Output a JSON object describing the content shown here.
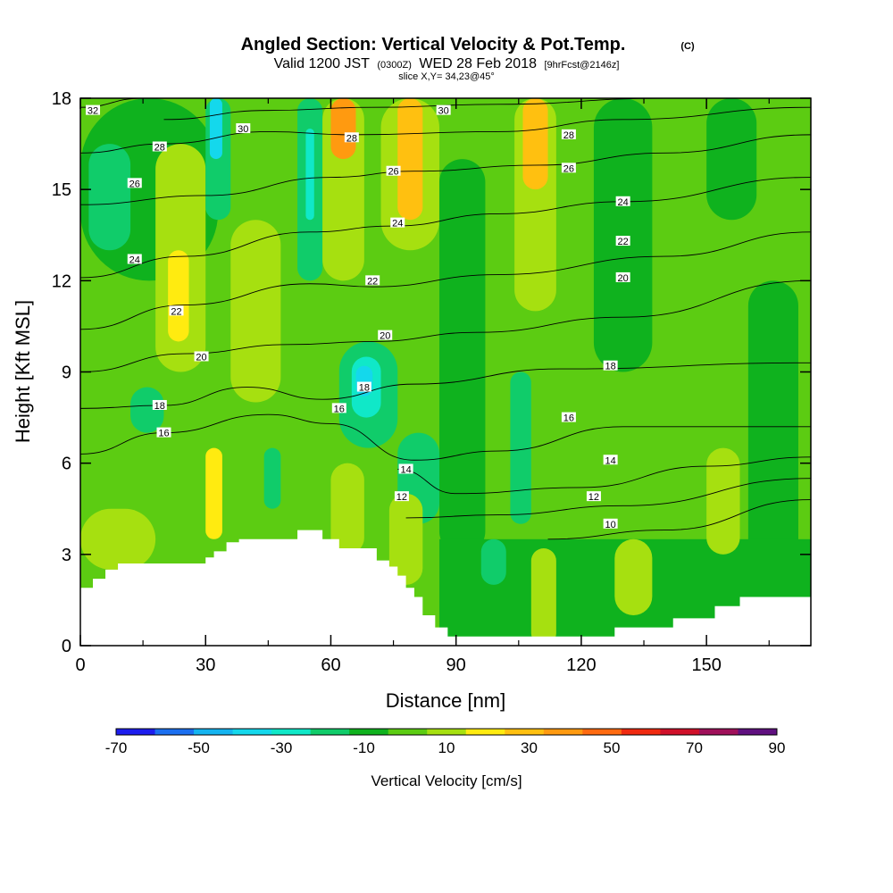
{
  "chart_data": {
    "type": "heatmap",
    "title": "Angled Section: Vertical Velocity & Pot.Temp.",
    "title_tag": "(C)",
    "subtitle": {
      "valid_prefix": "Valid 1200 JST",
      "utc": "(0300Z)",
      "date": "WED 28 Feb 2018",
      "forecast": "[9hrFcst@2146z]"
    },
    "slice_text": "slice X,Y= 34,23@45°",
    "xlabel": "Distance [nm]",
    "ylabel": "Height [Kft MSL]",
    "xlim": [
      0,
      175
    ],
    "ylim": [
      0,
      18
    ],
    "x_ticks": [
      0,
      30,
      60,
      90,
      120,
      150
    ],
    "y_ticks": [
      0,
      3,
      6,
      9,
      12,
      15,
      18
    ],
    "colorbar": {
      "title": "Vertical Velocity [cm/s]",
      "tick_labels": [
        "-70",
        "-50",
        "-30",
        "-10",
        "10",
        "30",
        "50",
        "70",
        "90"
      ],
      "bounds": [
        -70,
        -60,
        -50,
        -40,
        -30,
        -20,
        -10,
        0,
        10,
        20,
        30,
        40,
        50,
        60,
        70,
        80,
        90
      ],
      "colors": [
        "#1d1dee",
        "#1b6ff0",
        "#14b4f0",
        "#14d8ec",
        "#10e8c8",
        "#10cc6a",
        "#0fb21e",
        "#5ccc12",
        "#a6e010",
        "#ffeb10",
        "#ffc010",
        "#ff9a10",
        "#ff6a10",
        "#f02a10",
        "#d0102a",
        "#a0105a",
        "#601080"
      ]
    },
    "velocity_cells": [
      {
        "x0": 0,
        "x1": 175,
        "y0": 0,
        "y1": 18,
        "value": 5
      },
      {
        "x0": 0,
        "x1": 33,
        "y0": 12,
        "y1": 18,
        "value": -5
      },
      {
        "x0": 2,
        "x1": 12,
        "y0": 13,
        "y1": 16.5,
        "value": -15
      },
      {
        "x0": 18,
        "x1": 30,
        "y0": 9,
        "y1": 16.5,
        "value": 15
      },
      {
        "x0": 21,
        "x1": 26,
        "y0": 10,
        "y1": 13,
        "value": 25
      },
      {
        "x0": 30,
        "x1": 36,
        "y0": 14,
        "y1": 18,
        "value": -15
      },
      {
        "x0": 31,
        "x1": 34,
        "y0": 16,
        "y1": 18,
        "value": -35
      },
      {
        "x0": 36,
        "x1": 48,
        "y0": 8,
        "y1": 14,
        "value": 15
      },
      {
        "x0": 52,
        "x1": 58,
        "y0": 12,
        "y1": 18,
        "value": -15
      },
      {
        "x0": 54,
        "x1": 56,
        "y0": 14,
        "y1": 17,
        "value": -30
      },
      {
        "x0": 58,
        "x1": 68,
        "y0": 12,
        "y1": 18,
        "value": 15
      },
      {
        "x0": 60,
        "x1": 66,
        "y0": 16,
        "y1": 18,
        "value": 45
      },
      {
        "x0": 72,
        "x1": 86,
        "y0": 13,
        "y1": 18,
        "value": 15
      },
      {
        "x0": 76,
        "x1": 82,
        "y0": 14,
        "y1": 18,
        "value": 35
      },
      {
        "x0": 86,
        "x1": 97,
        "y0": 3,
        "y1": 16,
        "value": -5
      },
      {
        "x0": 104,
        "x1": 114,
        "y0": 11,
        "y1": 18,
        "value": 15
      },
      {
        "x0": 106,
        "x1": 112,
        "y0": 15,
        "y1": 18,
        "value": 35
      },
      {
        "x0": 123,
        "x1": 137,
        "y0": 9,
        "y1": 18,
        "value": -5
      },
      {
        "x0": 150,
        "x1": 162,
        "y0": 14,
        "y1": 18,
        "value": -5
      },
      {
        "x0": 160,
        "x1": 172,
        "y0": 2,
        "y1": 12,
        "value": -5
      },
      {
        "x0": 12,
        "x1": 20,
        "y0": 7,
        "y1": 8.5,
        "value": -15
      },
      {
        "x0": 62,
        "x1": 76,
        "y0": 6.5,
        "y1": 10,
        "value": -15
      },
      {
        "x0": 65,
        "x1": 72,
        "y0": 7.5,
        "y1": 9.5,
        "value": -25
      },
      {
        "x0": 66,
        "x1": 70,
        "y0": 8.2,
        "y1": 9.2,
        "value": -35
      },
      {
        "x0": 76,
        "x1": 86,
        "y0": 4,
        "y1": 7,
        "value": -15
      },
      {
        "x0": 103,
        "x1": 108,
        "y0": 4,
        "y1": 9,
        "value": -15
      },
      {
        "x0": 0,
        "x1": 18,
        "y0": 2.5,
        "y1": 4.5,
        "value": 15
      },
      {
        "x0": 30,
        "x1": 34,
        "y0": 3.5,
        "y1": 6.5,
        "value": 25
      },
      {
        "x0": 44,
        "x1": 48,
        "y0": 4.5,
        "y1": 6.5,
        "value": -15
      },
      {
        "x0": 60,
        "x1": 68,
        "y0": 3,
        "y1": 6,
        "value": 15
      },
      {
        "x0": 74,
        "x1": 82,
        "y0": 2,
        "y1": 5,
        "value": 15
      },
      {
        "x0": 86,
        "x1": 175,
        "y0": 0,
        "y1": 3.5,
        "value": -5
      },
      {
        "x0": 96,
        "x1": 102,
        "y0": 2,
        "y1": 3.5,
        "value": -15
      },
      {
        "x0": 108,
        "x1": 114,
        "y0": 0,
        "y1": 3.2,
        "value": 15
      },
      {
        "x0": 128,
        "x1": 137,
        "y0": 1,
        "y1": 3.5,
        "value": 15
      },
      {
        "x0": 150,
        "x1": 158,
        "y0": 3,
        "y1": 6.5,
        "value": 15
      }
    ],
    "theta_contours": [
      {
        "level": 10,
        "points": [
          [
            112,
            3.5
          ],
          [
            140,
            3.8
          ],
          [
            175,
            4.8
          ]
        ]
      },
      {
        "level": 12,
        "points": [
          [
            78,
            4.2
          ],
          [
            100,
            4.3
          ],
          [
            130,
            4.6
          ],
          [
            175,
            5.5
          ]
        ]
      },
      {
        "level": 14,
        "points": [
          [
            76,
            5.8
          ],
          [
            90,
            5.0
          ],
          [
            120,
            5.2
          ],
          [
            150,
            5.9
          ],
          [
            175,
            6.2
          ]
        ]
      },
      {
        "level": 16,
        "points": [
          [
            0,
            6.3
          ],
          [
            20,
            7.0
          ],
          [
            45,
            7.6
          ],
          [
            60,
            7.3
          ],
          [
            80,
            6.1
          ],
          [
            100,
            6.4
          ],
          [
            130,
            7.2
          ],
          [
            175,
            7.2
          ]
        ]
      },
      {
        "level": 18,
        "points": [
          [
            0,
            7.8
          ],
          [
            20,
            7.9
          ],
          [
            40,
            8.5
          ],
          [
            58,
            8.1
          ],
          [
            80,
            8.6
          ],
          [
            115,
            9.1
          ],
          [
            175,
            9.3
          ]
        ]
      },
      {
        "level": 20,
        "points": [
          [
            0,
            9.0
          ],
          [
            25,
            9.6
          ],
          [
            50,
            9.9
          ],
          [
            70,
            10.0
          ],
          [
            95,
            10.3
          ],
          [
            130,
            10.8
          ],
          [
            175,
            12.0
          ]
        ]
      },
      {
        "level": 22,
        "points": [
          [
            0,
            10.4
          ],
          [
            25,
            11.2
          ],
          [
            55,
            11.9
          ],
          [
            70,
            11.8
          ],
          [
            100,
            12.2
          ],
          [
            140,
            12.8
          ],
          [
            175,
            13.6
          ]
        ]
      },
      {
        "level": 24,
        "points": [
          [
            0,
            12.1
          ],
          [
            25,
            12.8
          ],
          [
            55,
            13.6
          ],
          [
            75,
            13.8
          ],
          [
            100,
            14.2
          ],
          [
            130,
            14.6
          ],
          [
            175,
            15.4
          ]
        ]
      },
      {
        "level": 26,
        "points": [
          [
            0,
            14.5
          ],
          [
            30,
            14.8
          ],
          [
            60,
            15.4
          ],
          [
            80,
            15.6
          ],
          [
            110,
            15.8
          ],
          [
            140,
            16.2
          ],
          [
            175,
            16.8
          ]
        ]
      },
      {
        "level": 28,
        "points": [
          [
            0,
            16.2
          ],
          [
            20,
            16.5
          ],
          [
            45,
            16.9
          ],
          [
            65,
            16.8
          ],
          [
            100,
            16.9
          ],
          [
            130,
            17.3
          ],
          [
            175,
            17.7
          ]
        ]
      },
      {
        "level": 30,
        "points": [
          [
            20,
            17.3
          ],
          [
            45,
            17.6
          ],
          [
            70,
            17.7
          ],
          [
            100,
            17.8
          ],
          [
            140,
            18.0
          ]
        ]
      },
      {
        "level": 32,
        "points": [
          [
            0,
            17.7
          ],
          [
            15,
            18.0
          ]
        ]
      }
    ],
    "contour_labels": [
      {
        "text": "32",
        "x": 3,
        "y": 17.6
      },
      {
        "text": "30",
        "x": 39,
        "y": 17.0
      },
      {
        "text": "30",
        "x": 87,
        "y": 17.6
      },
      {
        "text": "28",
        "x": 19,
        "y": 16.4
      },
      {
        "text": "28",
        "x": 65,
        "y": 16.7
      },
      {
        "text": "28",
        "x": 117,
        "y": 16.8
      },
      {
        "text": "26",
        "x": 13,
        "y": 15.2
      },
      {
        "text": "26",
        "x": 75,
        "y": 15.6
      },
      {
        "text": "26",
        "x": 117,
        "y": 15.7
      },
      {
        "text": "24",
        "x": 13,
        "y": 12.7
      },
      {
        "text": "24",
        "x": 76,
        "y": 13.9
      },
      {
        "text": "24",
        "x": 130,
        "y": 14.6
      },
      {
        "text": "22",
        "x": 23,
        "y": 11.0
      },
      {
        "text": "22",
        "x": 70,
        "y": 12.0
      },
      {
        "text": "22",
        "x": 130,
        "y": 13.3
      },
      {
        "text": "20",
        "x": 29,
        "y": 9.5
      },
      {
        "text": "20",
        "x": 73,
        "y": 10.2
      },
      {
        "text": "20",
        "x": 130,
        "y": 12.1
      },
      {
        "text": "18",
        "x": 19,
        "y": 7.9
      },
      {
        "text": "18",
        "x": 68,
        "y": 8.5
      },
      {
        "text": "18",
        "x": 127,
        "y": 9.2
      },
      {
        "text": "16",
        "x": 20,
        "y": 7.0
      },
      {
        "text": "16",
        "x": 62,
        "y": 7.8
      },
      {
        "text": "16",
        "x": 117,
        "y": 7.5
      },
      {
        "text": "14",
        "x": 78,
        "y": 5.8
      },
      {
        "text": "14",
        "x": 127,
        "y": 6.1
      },
      {
        "text": "12",
        "x": 77,
        "y": 4.9
      },
      {
        "text": "12",
        "x": 123,
        "y": 4.9
      },
      {
        "text": "10",
        "x": 127,
        "y": 4.0
      }
    ],
    "terrain": [
      [
        0,
        1.9
      ],
      [
        3,
        1.9
      ],
      [
        3,
        2.2
      ],
      [
        6,
        2.2
      ],
      [
        6,
        2.5
      ],
      [
        9,
        2.5
      ],
      [
        9,
        2.7
      ],
      [
        30,
        2.7
      ],
      [
        30,
        2.9
      ],
      [
        32,
        2.9
      ],
      [
        32,
        3.1
      ],
      [
        35,
        3.1
      ],
      [
        35,
        3.4
      ],
      [
        38,
        3.4
      ],
      [
        38,
        3.5
      ],
      [
        52,
        3.5
      ],
      [
        52,
        3.8
      ],
      [
        58,
        3.8
      ],
      [
        58,
        3.5
      ],
      [
        62,
        3.5
      ],
      [
        62,
        3.2
      ],
      [
        71,
        3.2
      ],
      [
        71,
        2.8
      ],
      [
        74,
        2.8
      ],
      [
        74,
        2.6
      ],
      [
        76,
        2.6
      ],
      [
        76,
        2.3
      ],
      [
        78,
        2.3
      ],
      [
        78,
        1.9
      ],
      [
        80,
        1.9
      ],
      [
        80,
        1.6
      ],
      [
        82,
        1.6
      ],
      [
        82,
        1.0
      ],
      [
        85,
        1.0
      ],
      [
        85,
        0.6
      ],
      [
        88,
        0.6
      ],
      [
        88,
        0.3
      ],
      [
        128,
        0.3
      ],
      [
        128,
        0.6
      ],
      [
        142,
        0.6
      ],
      [
        142,
        0.9
      ],
      [
        152,
        0.9
      ],
      [
        152,
        1.3
      ],
      [
        158,
        1.3
      ],
      [
        158,
        1.6
      ],
      [
        175,
        1.6
      ]
    ]
  }
}
